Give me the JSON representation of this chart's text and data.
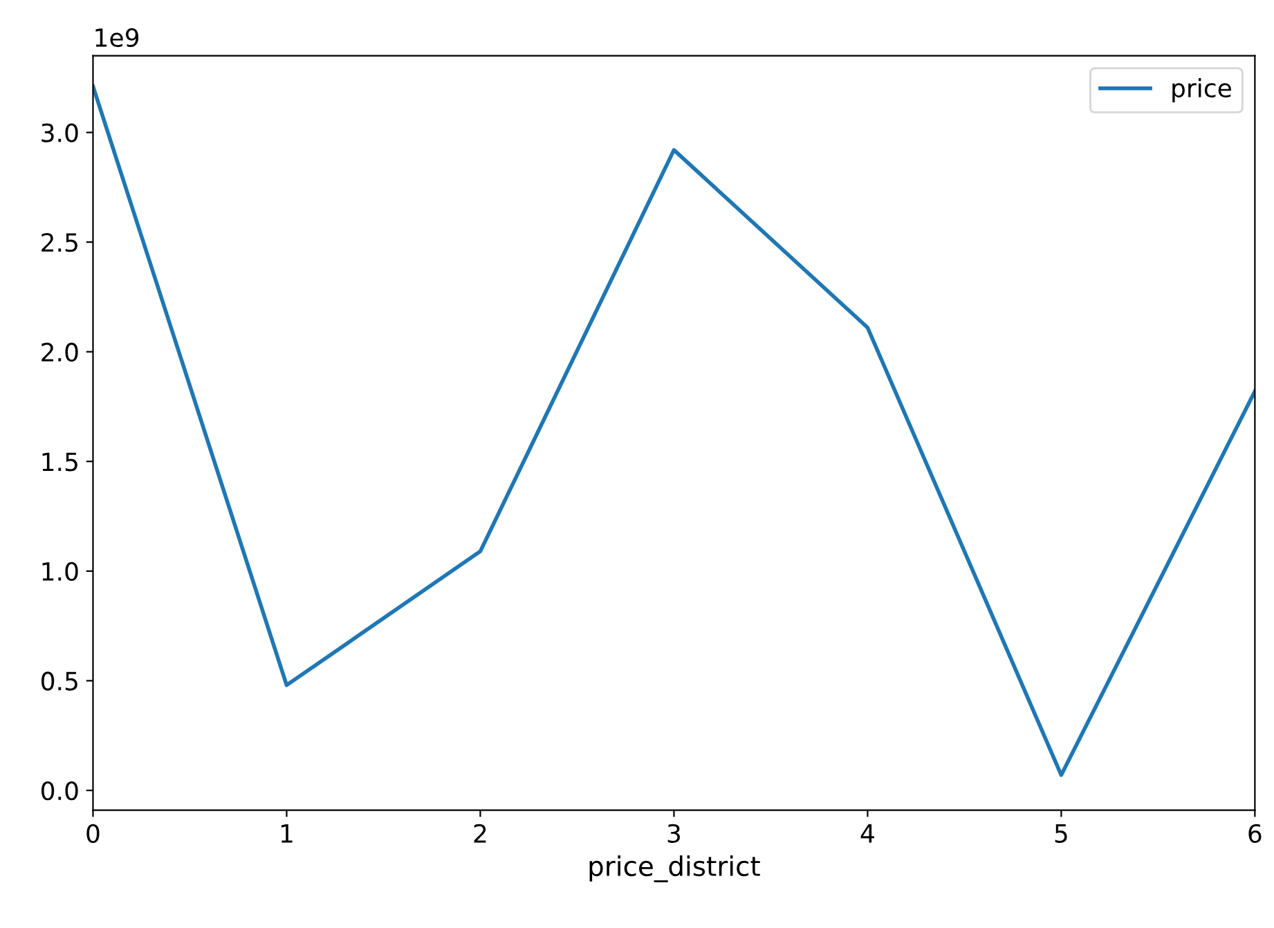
{
  "chart_data": {
    "type": "line",
    "xlabel": "price_district",
    "x": [
      0,
      1,
      2,
      3,
      4,
      5,
      6
    ],
    "series": [
      {
        "name": "price",
        "color": "#1f77b4",
        "values": [
          3.21,
          0.48,
          1.09,
          2.92,
          2.11,
          0.07,
          1.82
        ]
      }
    ],
    "xlim": [
      0,
      6
    ],
    "xticks": [
      0,
      1,
      2,
      3,
      4,
      5,
      6
    ],
    "ylim": [
      -0.09,
      3.35
    ],
    "yticks": [
      {
        "value": 0,
        "label": "0.0"
      },
      0.5,
      {
        "value": 1,
        "label": "1.0"
      },
      1.5,
      {
        "value": 2,
        "label": "2.0"
      },
      2.5,
      {
        "value": 3,
        "label": "3.0"
      }
    ],
    "annotations": [
      "1e9"
    ],
    "legend": "top right",
    "grid": false
  }
}
